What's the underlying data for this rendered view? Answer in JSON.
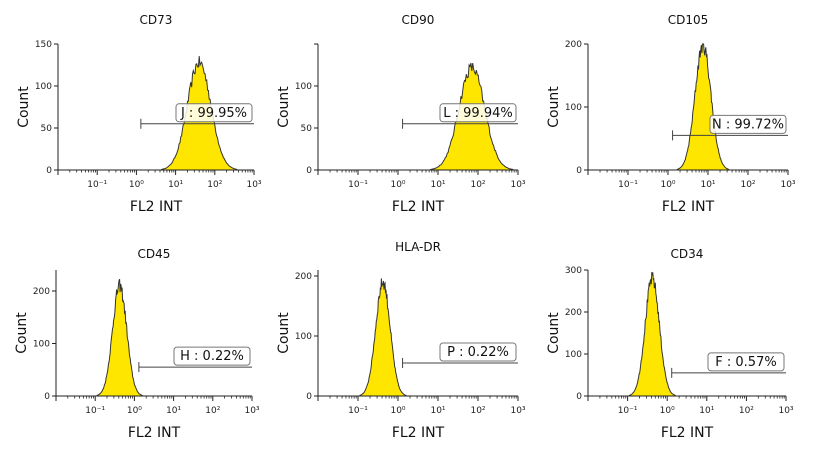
{
  "chart_data": [
    {
      "type": "histogram",
      "title": "CD73",
      "xlabel": "FL2 INT",
      "ylabel": "Count",
      "x_scale": "log",
      "xlim": [
        0.01,
        1000
      ],
      "x_ticks": [
        "10⁻¹",
        "10⁰",
        "10¹",
        "10²",
        "10³"
      ],
      "ylim": [
        0,
        150
      ],
      "y_ticks": [
        0,
        50,
        100,
        150
      ],
      "y_tick_labels": [
        "0",
        "50",
        "100",
        "150"
      ],
      "peak_x": 40,
      "peak_count": 128,
      "spread_decades": 0.3,
      "fill_color": "#ffe600",
      "gate": {
        "label": "J : 99.95%",
        "from": 1.3,
        "to": 1000,
        "count": 55
      }
    },
    {
      "type": "histogram",
      "title": "CD90",
      "xlabel": "FL2 INT",
      "ylabel": "Count",
      "x_scale": "log",
      "xlim": [
        0.01,
        1000
      ],
      "x_ticks": [
        "10⁻¹",
        "10⁰",
        "10¹",
        "10²",
        "10³"
      ],
      "ylim": [
        0,
        150
      ],
      "y_ticks": [
        0,
        50,
        100,
        150
      ],
      "y_tick_labels": [
        "0",
        "50",
        "100",
        ""
      ],
      "peak_x": 70,
      "peak_count": 122,
      "spread_decades": 0.32,
      "fill_color": "#ffe600",
      "gate": {
        "label": "L : 99.94%",
        "from": 1.3,
        "to": 1000,
        "count": 55
      }
    },
    {
      "type": "histogram",
      "title": "CD105",
      "xlabel": "FL2 INT",
      "ylabel": "Count",
      "x_scale": "log",
      "xlim": [
        0.01,
        1000
      ],
      "x_ticks": [
        "10⁻¹",
        "10⁰",
        "10¹",
        "10²",
        "10³"
      ],
      "ylim": [
        0,
        200
      ],
      "y_ticks": [
        0,
        100,
        200
      ],
      "y_tick_labels": [
        "0",
        "100",
        "200"
      ],
      "peak_x": 7.5,
      "peak_count": 198,
      "spread_decades": 0.2,
      "fill_color": "#ffe600",
      "gate": {
        "label": "N : 99.72%",
        "from": 1.3,
        "to": 1000,
        "count": 55
      }
    },
    {
      "type": "histogram",
      "title": "CD45",
      "xlabel": "FL2 INT",
      "ylabel": "Count",
      "x_scale": "log",
      "xlim": [
        0.01,
        1000
      ],
      "x_ticks": [
        "10⁻¹",
        "10⁰",
        "10¹",
        "10²",
        "10³"
      ],
      "ylim": [
        0,
        240
      ],
      "y_ticks": [
        0,
        100,
        200
      ],
      "y_tick_labels": [
        "0",
        "100",
        "200"
      ],
      "peak_x": 0.42,
      "peak_count": 210,
      "spread_decades": 0.18,
      "fill_color": "#ffe600",
      "gate": {
        "label": "H : 0.22%",
        "from": 1.3,
        "to": 1000,
        "count": 55
      }
    },
    {
      "type": "histogram",
      "title": "HLA-DR",
      "xlabel": "FL2 INT",
      "ylabel": "Count",
      "x_scale": "log",
      "xlim": [
        0.01,
        1000
      ],
      "x_ticks": [
        "10⁻¹",
        "10⁰",
        "10¹",
        "10²",
        "10³"
      ],
      "ylim": [
        0,
        210
      ],
      "y_ticks": [
        0,
        100,
        200
      ],
      "y_tick_labels": [
        "0",
        "100",
        "200"
      ],
      "peak_x": 0.42,
      "peak_count": 190,
      "spread_decades": 0.18,
      "fill_color": "#ffe600",
      "gate": {
        "label": "P : 0.22%",
        "from": 1.3,
        "to": 1000,
        "count": 55
      }
    },
    {
      "type": "histogram",
      "title": "CD34",
      "xlabel": "FL2 INT",
      "ylabel": "Count",
      "x_scale": "log",
      "xlim": [
        0.01,
        1000
      ],
      "x_ticks": [
        "10⁻¹",
        "10⁰",
        "10¹",
        "10²",
        "10³"
      ],
      "ylim": [
        0,
        300
      ],
      "y_ticks": [
        0,
        100,
        200,
        300
      ],
      "y_tick_labels": [
        "0",
        "100",
        "200",
        "300"
      ],
      "peak_x": 0.42,
      "peak_count": 280,
      "spread_decades": 0.18,
      "fill_color": "#ffe600",
      "gate": {
        "label": "F : 0.57%",
        "from": 1.3,
        "to": 1000,
        "count": 55
      }
    }
  ]
}
